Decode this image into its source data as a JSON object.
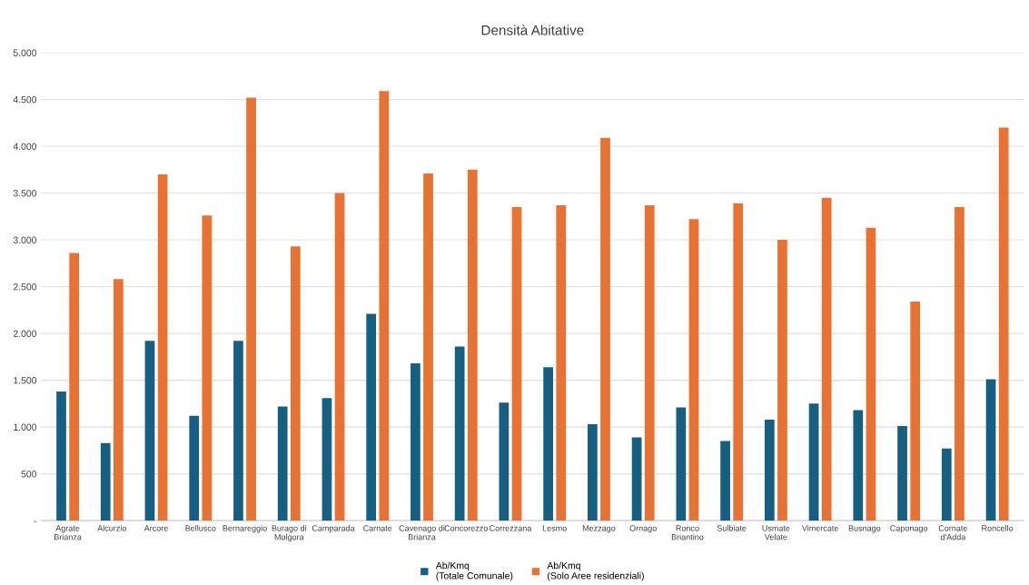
{
  "chart_data": {
    "type": "bar",
    "title": "Densità Abitative",
    "categories": [
      "Agrate\nBrianza",
      "Alcurzio",
      "Arcore",
      "Bellusco",
      "Bernareggio",
      "Burago di\nMolgora",
      "Camparada",
      "Carnate",
      "Cavenago di\nBrianza",
      "Concorezzo",
      "Correzzana",
      "Lesmo",
      "Mezzago",
      "Ornago",
      "Ronco\nBriantino",
      "Sulbiate",
      "Usmate\nVelate",
      "Vimercate",
      "Busnago",
      "Caponago",
      "Cornate\nd'Adda",
      "Roncello"
    ],
    "series": [
      {
        "name": "Ab/Kmq\n(Totale Comunale)",
        "color": "#156082",
        "values": [
          1380,
          830,
          1920,
          1120,
          1920,
          1220,
          1310,
          2210,
          1680,
          1860,
          1260,
          1640,
          1030,
          890,
          1210,
          850,
          1080,
          1250,
          1180,
          1010,
          770,
          1510
        ]
      },
      {
        "name": "Ab/Kmq\n(Solo Aree residenziali)",
        "color": "#e97132",
        "values": [
          2860,
          2580,
          3700,
          3260,
          4520,
          2930,
          3500,
          4590,
          3710,
          3750,
          3350,
          3370,
          4090,
          3370,
          3220,
          3390,
          3000,
          3450,
          3130,
          2340,
          3350,
          4200
        ]
      }
    ],
    "ylim": [
      0,
      5000
    ],
    "yticks": [
      {
        "value": 0,
        "label": "-"
      },
      {
        "value": 500,
        "label": "500"
      },
      {
        "value": 1000,
        "label": "1.000"
      },
      {
        "value": 1500,
        "label": "1.500"
      },
      {
        "value": 2000,
        "label": "2.000"
      },
      {
        "value": 2500,
        "label": "2.500"
      },
      {
        "value": 3000,
        "label": "3.000"
      },
      {
        "value": 3500,
        "label": "3.500"
      },
      {
        "value": 4000,
        "label": "4.000"
      },
      {
        "value": 4500,
        "label": "4.500"
      },
      {
        "value": 5000,
        "label": "5.000"
      }
    ],
    "grid": "y",
    "legend": "bottom"
  }
}
